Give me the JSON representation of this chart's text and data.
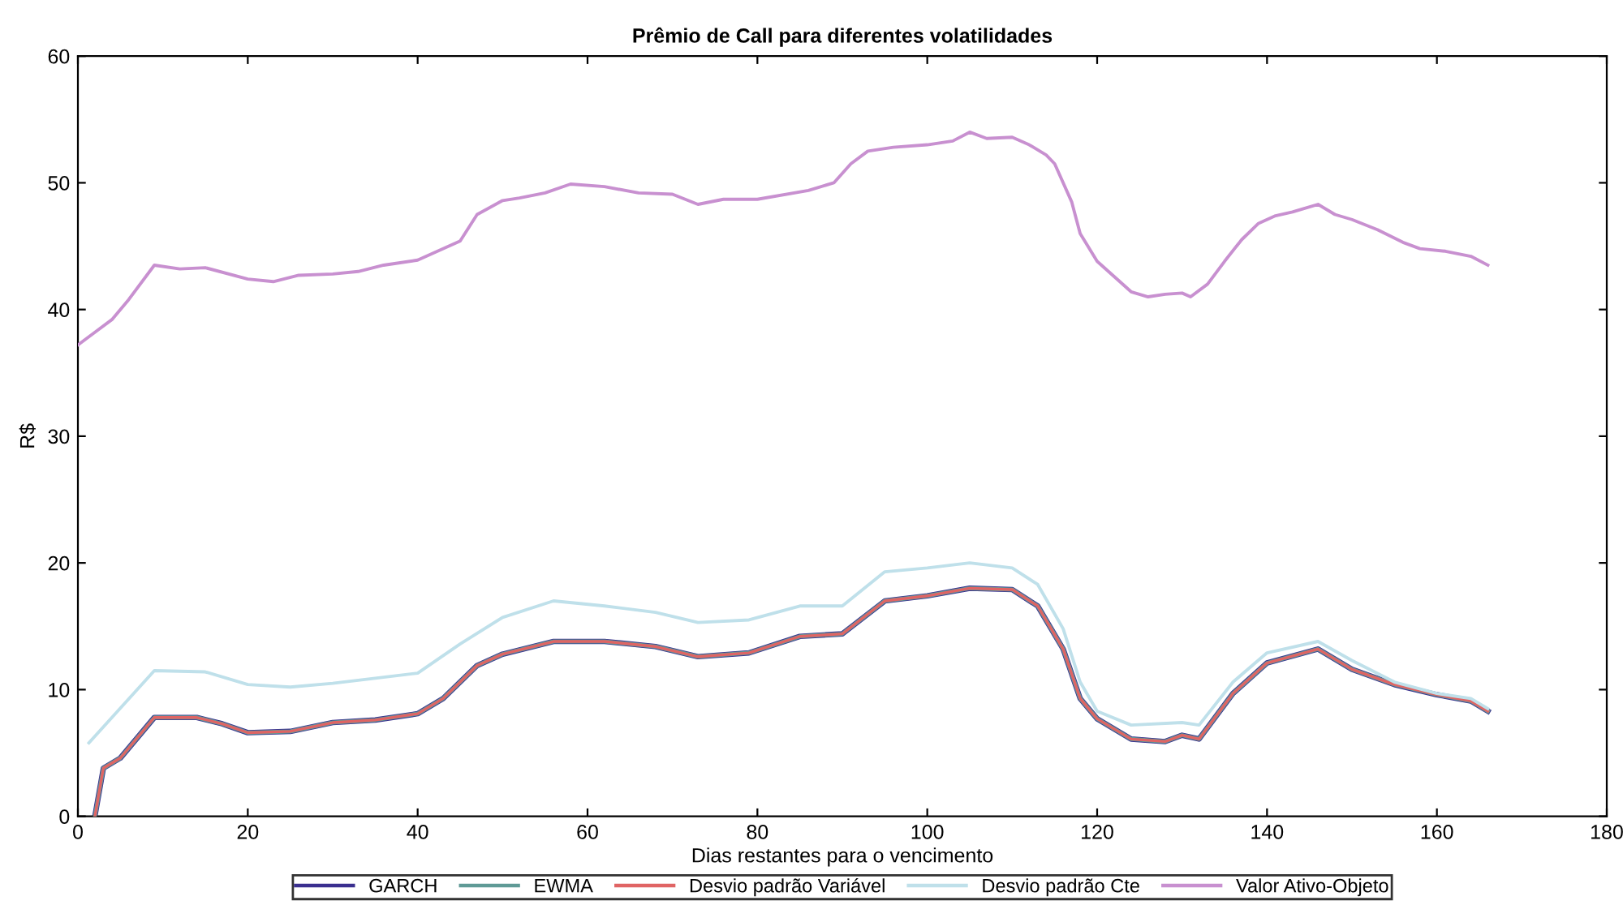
{
  "chart_data": {
    "type": "line",
    "title": "Prêmio de Call para diferentes volatilidades",
    "xlabel": "Dias restantes para o vencimento",
    "ylabel": "R$",
    "xlim": [
      0,
      180
    ],
    "xticks": [
      0,
      20,
      40,
      60,
      80,
      100,
      120,
      140,
      160,
      180
    ],
    "ylim": [
      0,
      60
    ],
    "yticks": [
      0,
      10,
      20,
      30,
      40,
      50,
      60
    ],
    "grid": false,
    "legend": "bottom",
    "marker": "none",
    "line_style": "solid",
    "series": [
      {
        "name": "GARCH",
        "color": "#3a2f8f",
        "x": [
          2,
          3,
          5,
          9,
          14,
          17,
          20,
          25,
          30,
          35,
          40,
          43,
          47,
          50,
          56,
          62,
          68,
          73,
          79,
          85,
          90,
          95,
          100,
          105,
          110,
          113,
          116,
          118,
          120,
          124,
          128,
          130,
          132,
          136,
          140,
          146,
          150,
          155,
          160,
          164,
          166
        ],
        "values": [
          0,
          3.8,
          4.6,
          7.8,
          7.8,
          7.3,
          6.6,
          6.7,
          7.4,
          7.6,
          8.1,
          9.3,
          11.9,
          12.8,
          13.8,
          13.8,
          13.4,
          12.6,
          12.9,
          14.2,
          14.4,
          17.0,
          17.4,
          18.0,
          17.9,
          16.6,
          13.2,
          9.3,
          7.7,
          6.1,
          5.9,
          6.4,
          6.1,
          9.7,
          12.1,
          13.2,
          11.6,
          10.4,
          9.6,
          9.1,
          8.3
        ]
      },
      {
        "name": "EWMA",
        "color": "#5f9a96",
        "x": [
          2,
          3,
          5,
          9,
          14,
          17,
          20,
          25,
          30,
          35,
          40,
          43,
          47,
          50,
          56,
          62,
          68,
          73,
          79,
          85,
          90,
          95,
          100,
          105,
          110,
          113,
          116,
          118,
          120,
          124,
          128,
          130,
          132,
          136,
          140,
          146,
          150,
          155,
          160,
          164,
          166
        ],
        "values": [
          0,
          3.8,
          4.6,
          7.8,
          7.8,
          7.3,
          6.6,
          6.7,
          7.4,
          7.6,
          8.1,
          9.3,
          11.9,
          12.8,
          13.8,
          13.8,
          13.4,
          12.6,
          12.9,
          14.2,
          14.4,
          17.0,
          17.4,
          18.0,
          17.9,
          16.6,
          13.2,
          9.3,
          7.7,
          6.1,
          5.9,
          6.4,
          6.1,
          9.7,
          12.1,
          13.2,
          11.6,
          10.4,
          9.6,
          9.1,
          8.3
        ]
      },
      {
        "name": "Desvio padrão Variável",
        "color": "#e06464",
        "x": [
          2,
          3,
          5,
          9,
          14,
          17,
          20,
          25,
          30,
          35,
          40,
          43,
          47,
          50,
          56,
          62,
          68,
          73,
          79,
          85,
          90,
          95,
          100,
          105,
          110,
          113,
          116,
          118,
          120,
          124,
          128,
          130,
          132,
          136,
          140,
          146,
          150,
          155,
          160,
          164,
          166
        ],
        "values": [
          0,
          3.8,
          4.6,
          7.8,
          7.8,
          7.3,
          6.6,
          6.7,
          7.4,
          7.6,
          8.1,
          9.3,
          11.9,
          12.8,
          13.8,
          13.8,
          13.4,
          12.6,
          12.9,
          14.2,
          14.4,
          17.0,
          17.4,
          18.0,
          17.9,
          16.6,
          13.2,
          9.3,
          7.7,
          6.1,
          5.9,
          6.4,
          6.1,
          9.7,
          12.1,
          13.2,
          11.6,
          10.4,
          9.6,
          9.1,
          8.3
        ]
      },
      {
        "name": "Desvio padrão Cte",
        "color": "#bfe0ea",
        "x": [
          1.3,
          9,
          15,
          20,
          25,
          30,
          35,
          40,
          45,
          50,
          56,
          62,
          68,
          73,
          79,
          85,
          90,
          95,
          100,
          105,
          110,
          113,
          116,
          118,
          120,
          124,
          130,
          132,
          136,
          140,
          146,
          150,
          155,
          160,
          164,
          166
        ],
        "values": [
          5.8,
          11.5,
          11.4,
          10.4,
          10.2,
          10.5,
          10.9,
          11.3,
          13.6,
          15.7,
          17.0,
          16.6,
          16.1,
          15.3,
          15.5,
          16.6,
          16.6,
          19.3,
          19.6,
          20.0,
          19.6,
          18.3,
          14.8,
          10.6,
          8.3,
          7.2,
          7.4,
          7.2,
          10.6,
          12.9,
          13.8,
          12.3,
          10.6,
          9.7,
          9.3,
          8.5
        ]
      },
      {
        "name": "Valor Ativo-Objeto",
        "color": "#c890d0",
        "x": [
          0,
          2,
          4,
          6,
          9,
          12,
          15,
          20,
          23,
          26,
          30,
          33,
          36,
          40,
          45,
          47,
          50,
          52,
          55,
          58,
          62,
          66,
          70,
          73,
          76,
          80,
          86,
          89,
          91,
          93,
          96,
          100,
          103,
          105,
          107,
          110,
          112,
          114,
          115,
          117,
          118,
          120,
          122,
          124,
          126,
          128,
          130,
          131,
          133,
          135,
          137,
          139,
          141,
          143,
          146,
          148,
          150,
          153,
          156,
          158,
          161,
          164,
          166
        ],
        "values": [
          37.2,
          38.2,
          39.2,
          40.8,
          43.5,
          43.2,
          43.3,
          42.4,
          42.2,
          42.7,
          42.8,
          43.0,
          43.5,
          43.9,
          45.4,
          47.5,
          48.6,
          48.8,
          49.2,
          49.9,
          49.7,
          49.2,
          49.1,
          48.3,
          48.7,
          48.7,
          49.4,
          50.0,
          51.5,
          52.5,
          52.8,
          53.0,
          53.3,
          54.0,
          53.5,
          53.6,
          53.0,
          52.2,
          51.5,
          48.5,
          46.0,
          43.8,
          42.6,
          41.4,
          41.0,
          41.2,
          41.3,
          41.0,
          42.0,
          43.8,
          45.5,
          46.8,
          47.4,
          47.7,
          48.3,
          47.5,
          47.1,
          46.3,
          45.3,
          44.8,
          44.6,
          44.2,
          43.5
        ]
      }
    ]
  }
}
